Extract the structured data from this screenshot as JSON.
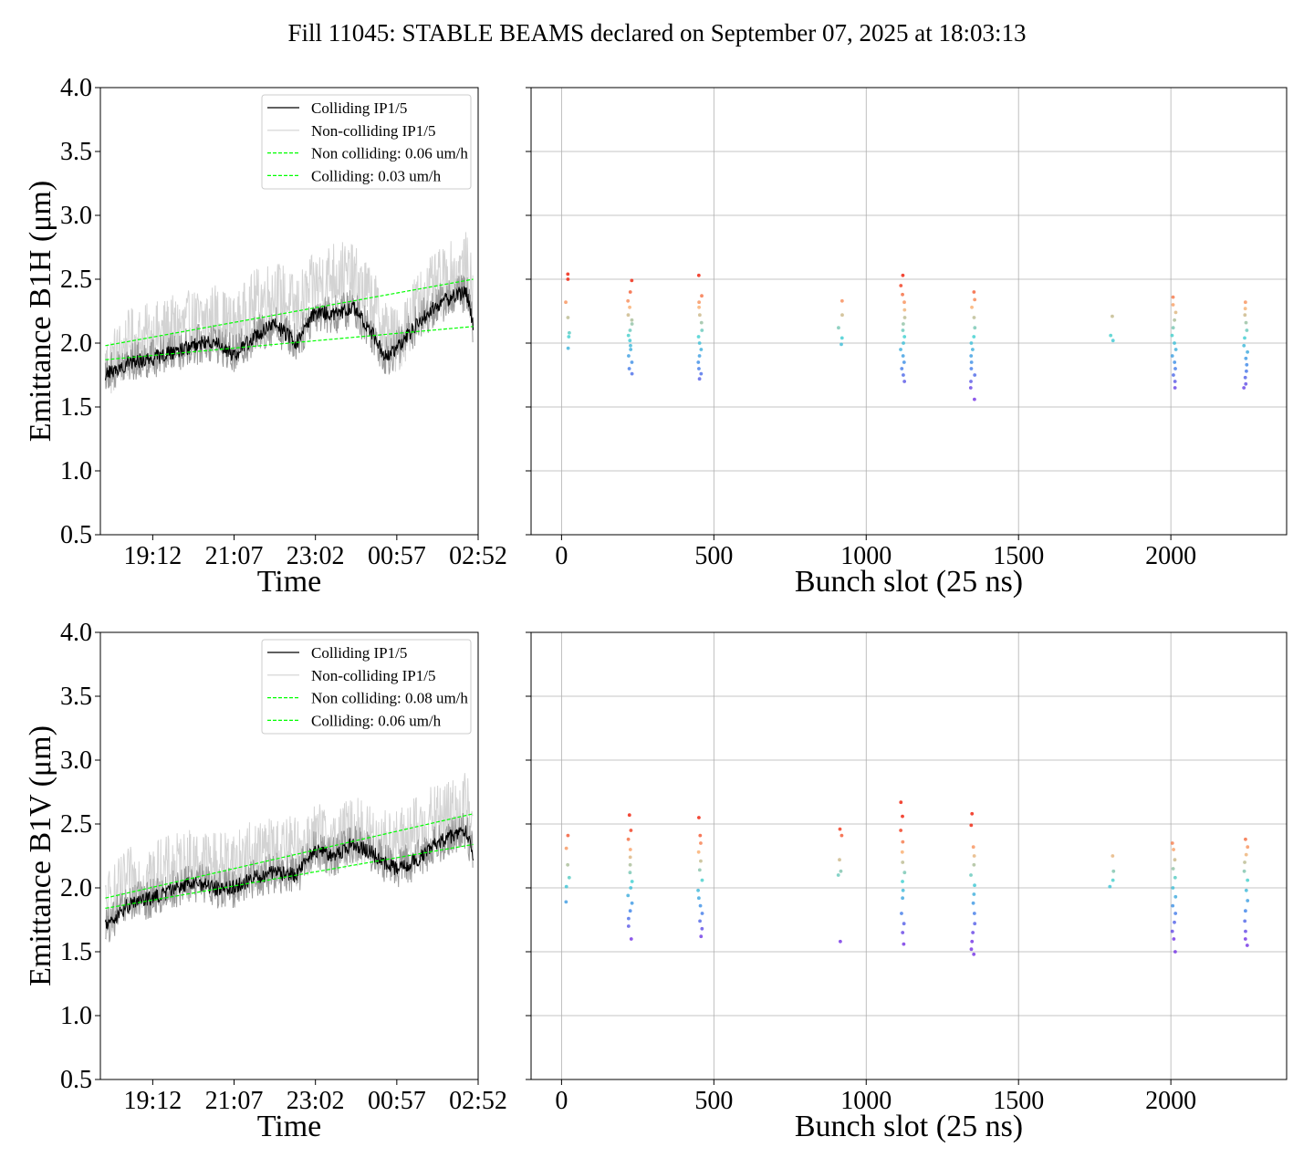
{
  "suptitle": "Fill 11045: STABLE BEAMS declared on September 07, 2025 at 18:03:13",
  "chart_data": [
    {
      "type": "line",
      "panel": "top-left",
      "xlabel": "Time",
      "ylabel": "Emittance B1H (μm)",
      "ylim": [
        0.5,
        4.0
      ],
      "yticks": [
        "0.5",
        "1.0",
        "1.5",
        "2.0",
        "2.5",
        "3.0",
        "3.5",
        "4.0"
      ],
      "xticks": [
        "19:12",
        "21:07",
        "23:02",
        "00:57",
        "02:52"
      ],
      "xrange": [
        "17:58",
        "02:52"
      ],
      "grid": false,
      "legend_position": "top-right",
      "legend": [
        "Colliding IP1/5",
        "Non-colliding IP1/5",
        "Non colliding: 0.06 um/h",
        "Colliding: 0.03 um/h"
      ],
      "series": [
        {
          "name": "Colliding IP1/5",
          "color": "#000000",
          "x": [
            "18:05",
            "18:40",
            "19:12",
            "19:40",
            "20:10",
            "20:40",
            "21:07",
            "21:35",
            "22:05",
            "22:35",
            "23:02",
            "23:30",
            "23:55",
            "00:20",
            "00:40",
            "00:57",
            "01:25",
            "01:55",
            "02:20",
            "02:35",
            "02:45"
          ],
          "y": [
            1.75,
            1.85,
            1.88,
            1.93,
            1.98,
            2.02,
            1.9,
            2.05,
            2.15,
            2.0,
            2.25,
            2.22,
            2.28,
            2.1,
            1.9,
            1.95,
            2.15,
            2.3,
            2.38,
            2.4,
            2.15
          ]
        },
        {
          "name": "Non-colliding IP1/5",
          "color": "#d3d3d3",
          "x": [
            "18:05",
            "18:40",
            "19:12",
            "19:40",
            "20:10",
            "20:40",
            "21:07",
            "21:35",
            "22:05",
            "22:35",
            "23:02",
            "23:30",
            "23:55",
            "00:20",
            "00:40",
            "00:57",
            "01:25",
            "01:55",
            "02:20",
            "02:35",
            "02:45"
          ],
          "y": [
            1.8,
            2.0,
            2.05,
            2.1,
            2.15,
            2.2,
            2.1,
            2.3,
            2.4,
            2.25,
            2.45,
            2.55,
            2.5,
            2.35,
            2.1,
            2.0,
            2.3,
            2.45,
            2.55,
            2.6,
            2.35
          ]
        },
        {
          "name": "Non colliding: 0.06 um/h",
          "color": "#00ff00",
          "dashed": true,
          "x": [
            "18:05",
            "02:45"
          ],
          "y": [
            1.98,
            2.5
          ]
        },
        {
          "name": "Colliding: 0.03 um/h",
          "color": "#00ff00",
          "dashed": true,
          "x": [
            "18:05",
            "02:45"
          ],
          "y": [
            1.87,
            2.13
          ]
        }
      ]
    },
    {
      "type": "scatter",
      "panel": "top-right",
      "xlabel": "Bunch slot (25 ns)",
      "xlim": [
        -100,
        2380
      ],
      "ylim": [
        0.5,
        4.0
      ],
      "xticks": [
        "0",
        "500",
        "1000",
        "1500",
        "2000"
      ],
      "grid": true,
      "trains": [
        {
          "x": 20,
          "y": [
            2.54,
            2.5,
            2.32,
            2.2,
            2.08,
            2.05,
            1.96
          ]
        },
        {
          "x": 225,
          "y": [
            2.49,
            2.4,
            2.33,
            2.28,
            2.22,
            2.18,
            2.15,
            2.1,
            2.06,
            2.02,
            1.98,
            1.95,
            1.9,
            1.85,
            1.8,
            1.76
          ]
        },
        {
          "x": 455,
          "y": [
            2.53,
            2.37,
            2.32,
            2.28,
            2.22,
            2.16,
            2.1,
            2.05,
            2.0,
            1.95,
            1.9,
            1.85,
            1.8,
            1.76,
            1.72
          ]
        },
        {
          "x": 915,
          "y": [
            2.33,
            2.22,
            2.12,
            2.04,
            1.99
          ]
        },
        {
          "x": 1120,
          "y": [
            2.53,
            2.45,
            2.38,
            2.32,
            2.26,
            2.2,
            2.15,
            2.1,
            2.05,
            2.0,
            1.95,
            1.9,
            1.85,
            1.8,
            1.75,
            1.7
          ]
        },
        {
          "x": 1350,
          "y": [
            2.4,
            2.34,
            2.28,
            2.2,
            2.12,
            2.05,
            2.0,
            1.95,
            1.9,
            1.85,
            1.8,
            1.75,
            1.7,
            1.65,
            1.56
          ]
        },
        {
          "x": 1805,
          "y": [
            2.21,
            2.06,
            2.02
          ]
        },
        {
          "x": 2010,
          "y": [
            2.36,
            2.3,
            2.24,
            2.18,
            2.12,
            2.06,
            2.0,
            1.95,
            1.9,
            1.85,
            1.8,
            1.75,
            1.7,
            1.65
          ]
        },
        {
          "x": 2245,
          "y": [
            2.32,
            2.27,
            2.22,
            2.16,
            2.1,
            2.04,
            1.98,
            1.93,
            1.88,
            1.83,
            1.78,
            1.73,
            1.68,
            1.65
          ]
        }
      ]
    },
    {
      "type": "line",
      "panel": "bottom-left",
      "xlabel": "Time",
      "ylabel": "Emittance B1V (μm)",
      "ylim": [
        0.5,
        4.0
      ],
      "yticks": [
        "0.5",
        "1.0",
        "1.5",
        "2.0",
        "2.5",
        "3.0",
        "3.5",
        "4.0"
      ],
      "xticks": [
        "19:12",
        "21:07",
        "23:02",
        "00:57",
        "02:52"
      ],
      "xrange": [
        "17:58",
        "02:52"
      ],
      "grid": false,
      "legend_position": "top-right",
      "legend": [
        "Colliding IP1/5",
        "Non-colliding IP1/5",
        "Non colliding: 0.08 um/h",
        "Colliding: 0.06 um/h"
      ],
      "series": [
        {
          "name": "Colliding IP1/5",
          "color": "#000000",
          "x": [
            "18:05",
            "18:40",
            "19:12",
            "19:40",
            "20:10",
            "20:40",
            "21:07",
            "21:35",
            "22:05",
            "22:35",
            "23:02",
            "23:30",
            "23:55",
            "00:20",
            "00:40",
            "00:57",
            "01:25",
            "01:55",
            "02:20",
            "02:35",
            "02:45"
          ],
          "y": [
            1.7,
            1.88,
            1.92,
            1.98,
            2.05,
            2.0,
            2.0,
            2.08,
            2.12,
            2.1,
            2.3,
            2.25,
            2.35,
            2.28,
            2.2,
            2.15,
            2.22,
            2.35,
            2.42,
            2.45,
            2.25
          ]
        },
        {
          "name": "Non-colliding IP1/5",
          "color": "#d3d3d3",
          "x": [
            "18:05",
            "18:40",
            "19:12",
            "19:40",
            "20:10",
            "20:40",
            "21:07",
            "21:35",
            "22:05",
            "22:35",
            "23:02",
            "23:30",
            "23:55",
            "00:20",
            "00:40",
            "00:57",
            "01:25",
            "01:55",
            "02:20",
            "02:35",
            "02:45"
          ],
          "y": [
            1.85,
            2.05,
            2.1,
            2.15,
            2.2,
            2.18,
            2.2,
            2.25,
            2.3,
            2.28,
            2.4,
            2.35,
            2.45,
            2.4,
            2.35,
            2.35,
            2.45,
            2.55,
            2.6,
            2.65,
            2.4
          ]
        },
        {
          "name": "Non colliding: 0.08 um/h",
          "color": "#00ff00",
          "dashed": true,
          "x": [
            "18:05",
            "02:45"
          ],
          "y": [
            1.92,
            2.58
          ]
        },
        {
          "name": "Colliding: 0.06 um/h",
          "color": "#00ff00",
          "dashed": true,
          "x": [
            "18:05",
            "02:45"
          ],
          "y": [
            1.84,
            2.34
          ]
        }
      ]
    },
    {
      "type": "scatter",
      "panel": "bottom-right",
      "xlabel": "Bunch slot (25 ns)",
      "xlim": [
        -100,
        2380
      ],
      "ylim": [
        0.5,
        4.0
      ],
      "xticks": [
        "0",
        "500",
        "1000",
        "1500",
        "2000"
      ],
      "grid": true,
      "trains": [
        {
          "x": 20,
          "y": [
            2.41,
            2.31,
            2.18,
            2.08,
            2.01,
            1.89
          ]
        },
        {
          "x": 225,
          "y": [
            2.57,
            2.45,
            2.38,
            2.3,
            2.24,
            2.18,
            2.12,
            2.05,
            2.0,
            1.94,
            1.88,
            1.82,
            1.76,
            1.7,
            1.6
          ]
        },
        {
          "x": 455,
          "y": [
            2.55,
            2.41,
            2.35,
            2.28,
            2.21,
            2.14,
            2.06,
            1.98,
            1.92,
            1.86,
            1.8,
            1.74,
            1.68,
            1.62
          ]
        },
        {
          "x": 915,
          "y": [
            2.46,
            2.41,
            2.22,
            2.13,
            2.1,
            1.58
          ]
        },
        {
          "x": 1120,
          "y": [
            2.67,
            2.56,
            2.45,
            2.36,
            2.28,
            2.2,
            2.12,
            2.05,
            1.98,
            1.92,
            1.8,
            1.72,
            1.65,
            1.56
          ]
        },
        {
          "x": 1350,
          "y": [
            2.58,
            2.49,
            2.32,
            2.25,
            2.18,
            2.1,
            2.02,
            1.95,
            1.88,
            1.8,
            1.72,
            1.65,
            1.58,
            1.52,
            1.48
          ]
        },
        {
          "x": 1805,
          "y": [
            2.25,
            2.13,
            2.06,
            2.01
          ]
        },
        {
          "x": 2010,
          "y": [
            2.35,
            2.3,
            2.22,
            2.15,
            2.08,
            2.0,
            1.93,
            1.86,
            1.8,
            1.73,
            1.66,
            1.6,
            1.5
          ]
        },
        {
          "x": 2245,
          "y": [
            2.38,
            2.32,
            2.26,
            2.2,
            2.13,
            2.06,
            1.98,
            1.9,
            1.82,
            1.74,
            1.66,
            1.6,
            1.55
          ]
        }
      ]
    }
  ]
}
